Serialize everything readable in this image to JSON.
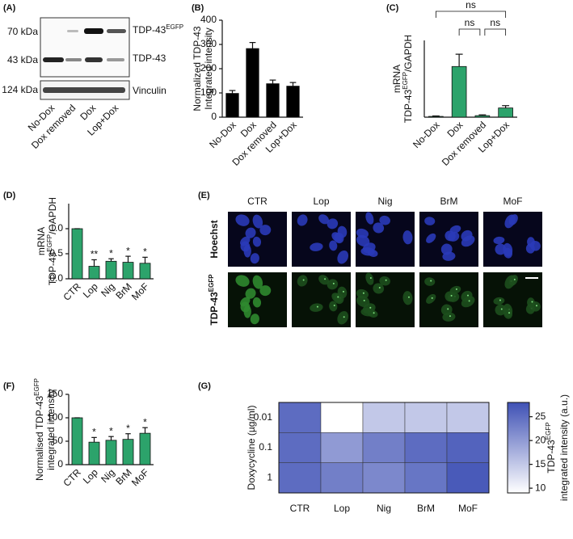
{
  "panel_labels": [
    "(A)",
    "(B)",
    "(C)",
    "(D)",
    "(E)",
    "(F)",
    "(G)"
  ],
  "blot": {
    "mw_markers": [
      "70 kDa",
      "43 kDa",
      "124 kDa"
    ],
    "bands": [
      [
        "TDP-43",
        {
          "sup": "EGFP"
        }
      ],
      [
        "TDP-43"
      ],
      [
        "Vinculin"
      ]
    ],
    "lanes": [
      "No-Dox",
      "Dox removed",
      "Dox",
      "Lop+Dox"
    ]
  },
  "microscopy": {
    "columns": [
      "CTR",
      "Lop",
      "Nig",
      "BrM",
      "MoF"
    ],
    "rows": [
      [
        "Hoechst"
      ],
      [
        "TDP-43",
        {
          "sup": "EGFP"
        }
      ]
    ]
  },
  "chart_data": [
    {
      "type": "bar",
      "ylabel": [
        [
          "Normalized TDP-43"
        ],
        [
          "Integrated intensity"
        ]
      ],
      "categories": [
        "No-Dox",
        "Dox",
        "Dox removed",
        "Lop+Dox"
      ],
      "values": [
        98,
        283,
        138,
        128
      ],
      "errors": [
        12,
        25,
        15,
        15
      ],
      "color": "#000000",
      "ylim": [
        0,
        400
      ],
      "yticks": [
        0,
        100,
        200,
        300,
        400
      ]
    },
    {
      "type": "bar",
      "ylabel": [
        [
          "mRNA"
        ],
        [
          "TDP-43",
          {
            "sup": "EGFP"
          },
          "/GAPDH"
        ]
      ],
      "categories": [
        "No-Dox",
        "Dox",
        "Dox removed",
        "Lop+Dox"
      ],
      "values": [
        0.5,
        33,
        1,
        6
      ],
      "errors": [
        0.3,
        8,
        0.5,
        1.5
      ],
      "color": "#2ca36b",
      "ylim": [
        0,
        50
      ],
      "annotations": [
        "ns",
        "ns",
        "ns"
      ]
    },
    {
      "type": "bar",
      "ylabel": [
        [
          "mRNA"
        ],
        [
          "TDP-43",
          {
            "sup": "EGFP"
          },
          "/GAPDH"
        ]
      ],
      "categories": [
        "CTR",
        "Lop",
        "Nig",
        "BrM",
        "MoF"
      ],
      "values": [
        1.0,
        0.25,
        0.35,
        0.33,
        0.31
      ],
      "errors": [
        0,
        0.13,
        0.05,
        0.12,
        0.12
      ],
      "color": "#2ca36b",
      "significance": [
        null,
        "**",
        "*",
        "*",
        "*"
      ],
      "ylim": [
        0,
        1.5
      ],
      "yticks": [
        {
          "value": 0,
          "label": "0.0"
        },
        {
          "value": 0.5,
          "label": "0.5"
        },
        {
          "value": 1,
          "label": "1.0"
        }
      ]
    },
    {
      "type": "bar",
      "ylabel": [
        [
          "Normalised TDP-43",
          {
            "sup": "EGFP"
          }
        ],
        [
          "integrated intensity"
        ]
      ],
      "categories": [
        "CTR",
        "Lop",
        "Nig",
        "BrM",
        "MoF"
      ],
      "values": [
        100,
        48,
        52,
        54,
        67
      ],
      "errors": [
        0,
        10,
        8,
        12,
        12
      ],
      "color": "#2ca36b",
      "significance": [
        null,
        "*",
        "*",
        "*",
        "*"
      ],
      "ylim": [
        0,
        150
      ],
      "yticks": [
        0,
        50,
        100,
        150
      ]
    },
    {
      "type": "heatmap",
      "ylabel": [
        [
          "Doxycycline (µg/ml)"
        ]
      ],
      "x": [
        "CTR",
        "Lop",
        "Nig",
        "BrM",
        "MoF"
      ],
      "y": [
        "0.01",
        "0.1",
        "1"
      ],
      "values": [
        [
          25,
          9,
          15,
          15,
          15
        ],
        [
          25,
          20,
          23,
          25,
          26
        ],
        [
          25,
          23,
          22,
          24,
          27
        ]
      ],
      "clim": [
        9,
        28
      ],
      "cticks": [
        10,
        15,
        20,
        25
      ],
      "colorscale": [
        "#ffffff",
        "#3f51b5"
      ],
      "colorbar_label": [
        [
          "TDP-43",
          {
            "sup": "EGFP"
          }
        ],
        [
          "integrated intensity (a.u.)"
        ]
      ]
    }
  ]
}
